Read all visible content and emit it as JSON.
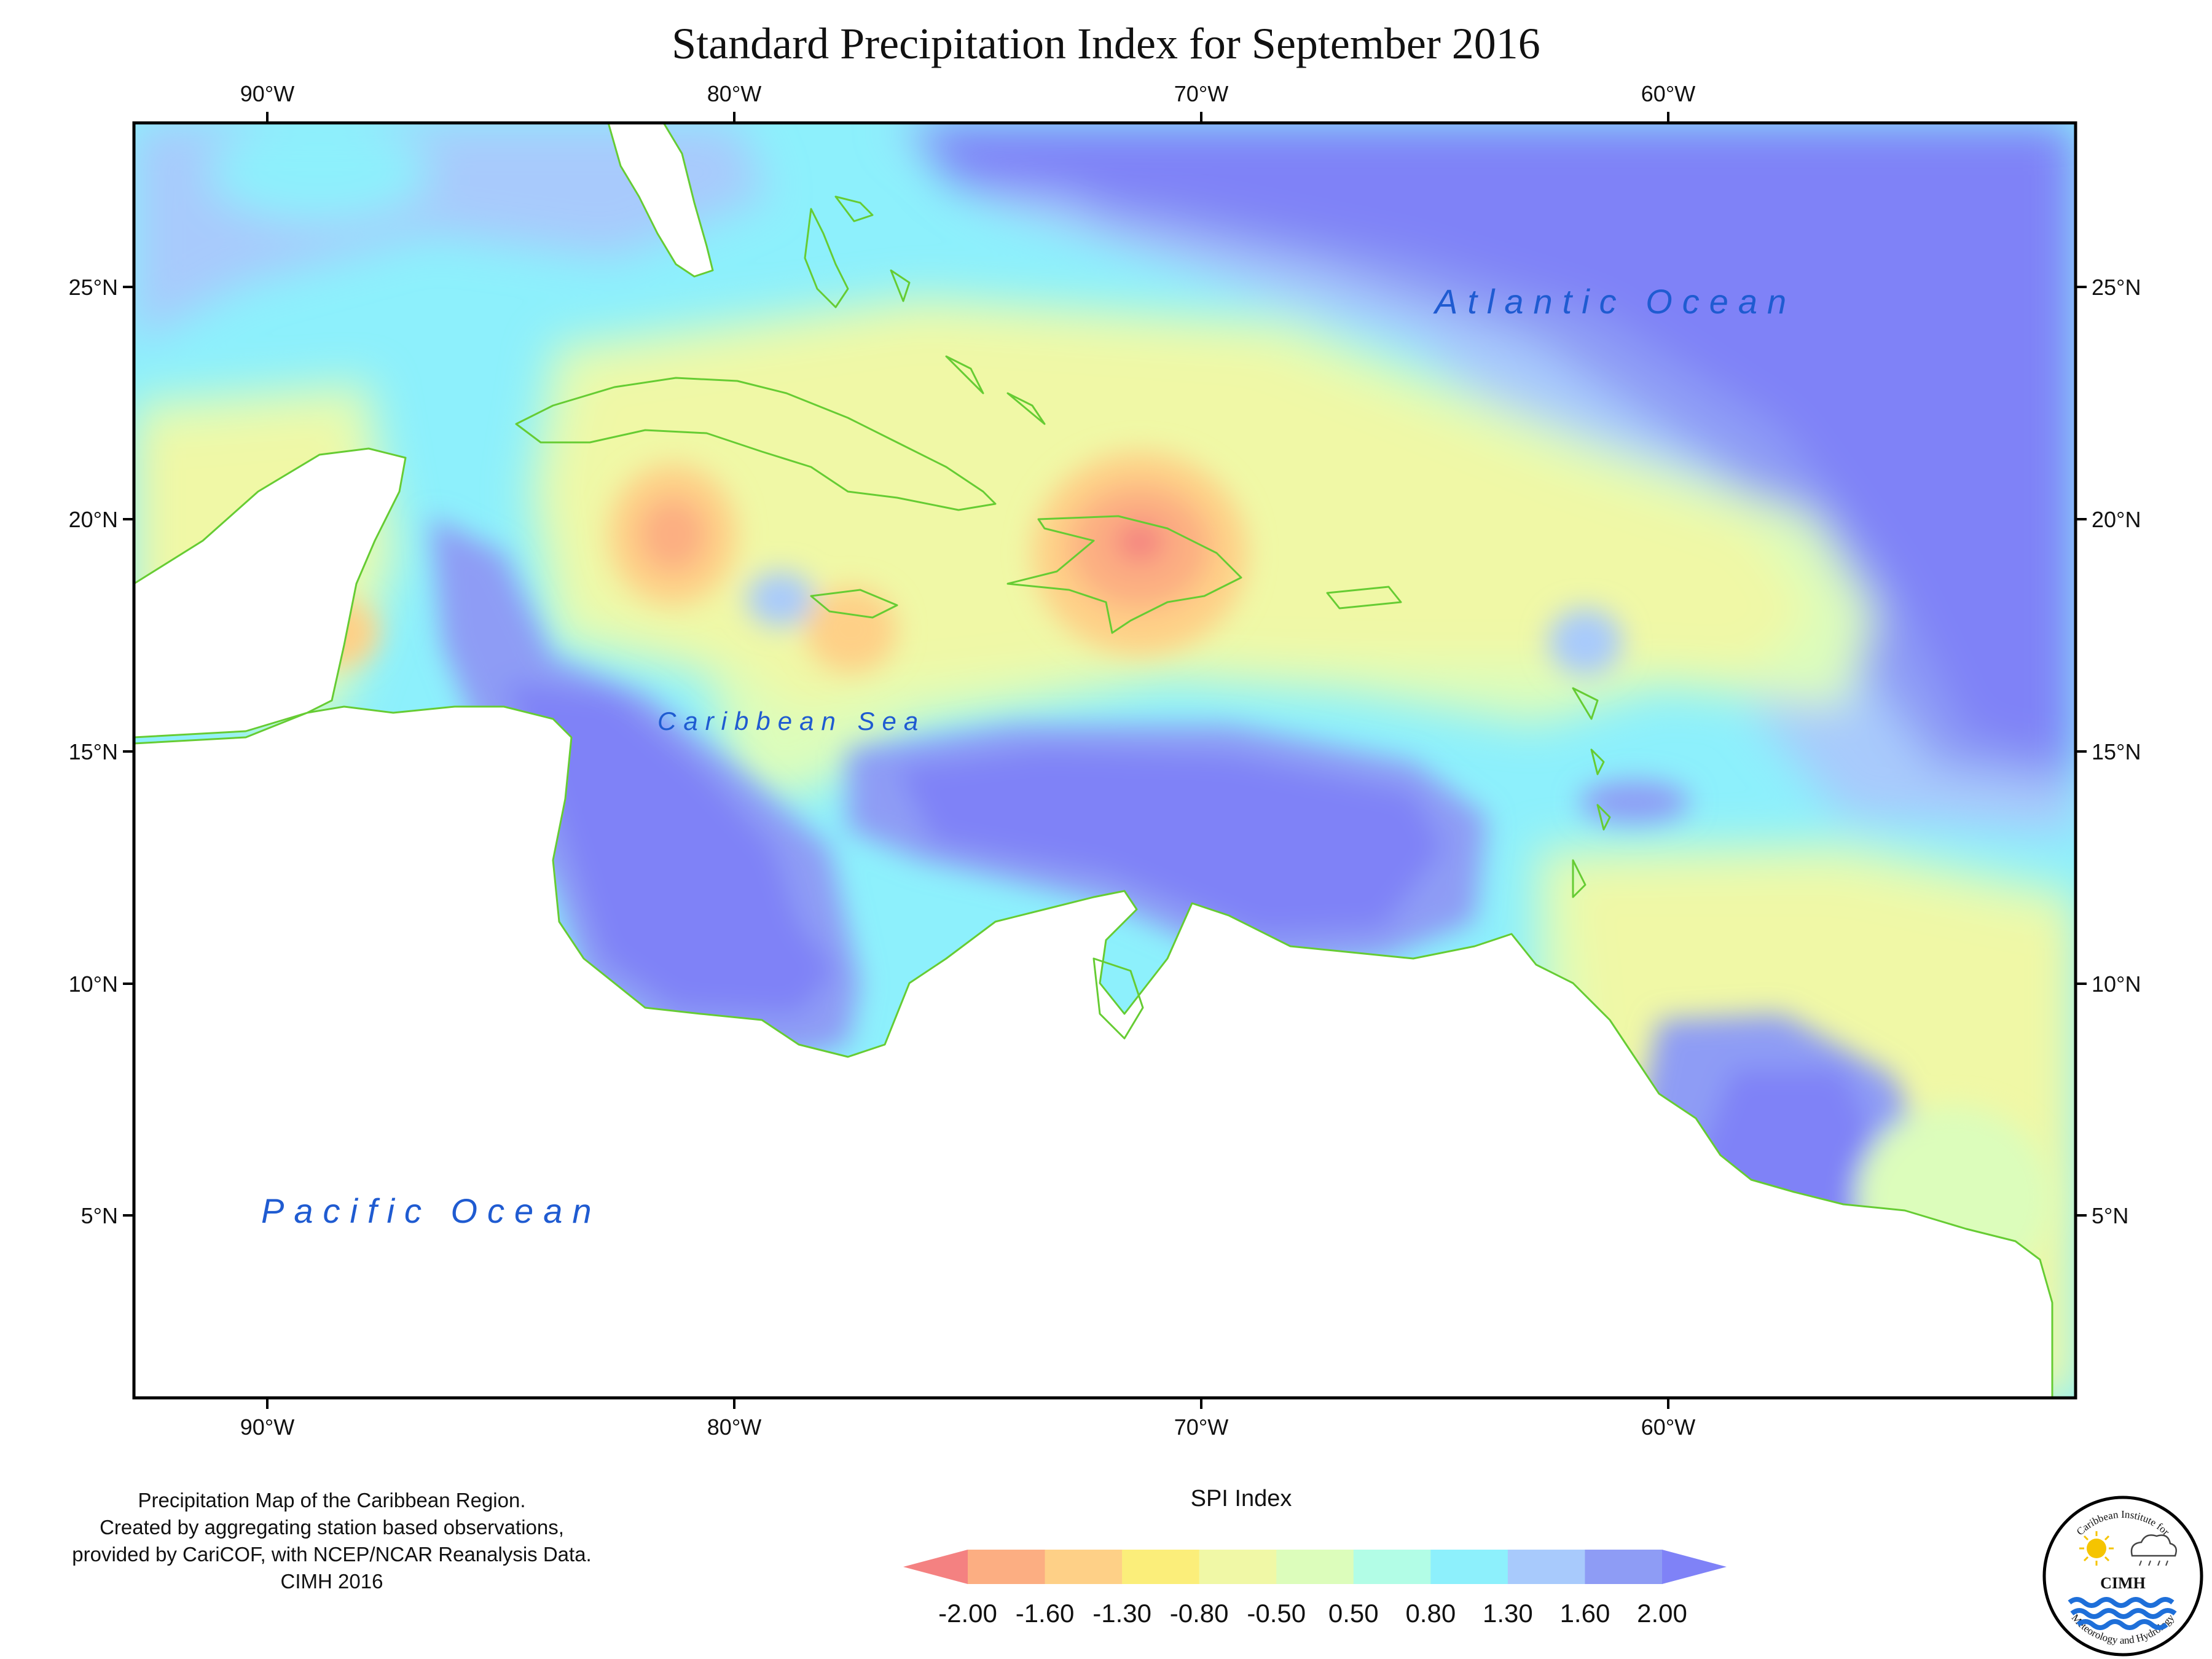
{
  "title": "Standard Precipitation Index for September 2016",
  "axes": {
    "longitude_labels": [
      "90°W",
      "80°W",
      "70°W",
      "60°W"
    ],
    "latitude_labels": [
      "25°N",
      "20°N",
      "15°N",
      "10°N",
      "5°N"
    ]
  },
  "map_labels": {
    "atlantic": "Atlantic Ocean",
    "caribbean": "Caribbean Sea",
    "pacific": "Pacific Ocean"
  },
  "notes": [
    "Precipitation Map of the Caribbean Region.",
    "Created by aggregating station based observations,",
    "provided by CariCOF, with NCEP/NCAR Reanalysis Data.",
    "CIMH 2016"
  ],
  "legend": {
    "title": "SPI Index",
    "ticks": [
      "-2.00",
      "-1.60",
      "-1.30",
      "-0.80",
      "-0.50",
      "0.50",
      "0.80",
      "1.30",
      "1.60",
      "2.00"
    ],
    "colors": [
      "#f48181",
      "#fcae82",
      "#fed087",
      "#fbee7a",
      "#f0f8a6",
      "#dcfdbb",
      "#b2fde6",
      "#8df0fc",
      "#a8cafc",
      "#8e9cf5",
      "#7f82f7"
    ]
  },
  "logo": {
    "text_top": "Caribbean Institute for",
    "text_bottom": "Meteorology and Hydrology",
    "abbr": "CIMH"
  },
  "colors": {
    "coastline": "#66cc33",
    "frame": "#000000",
    "ocean_label": "#1f5bd1"
  }
}
